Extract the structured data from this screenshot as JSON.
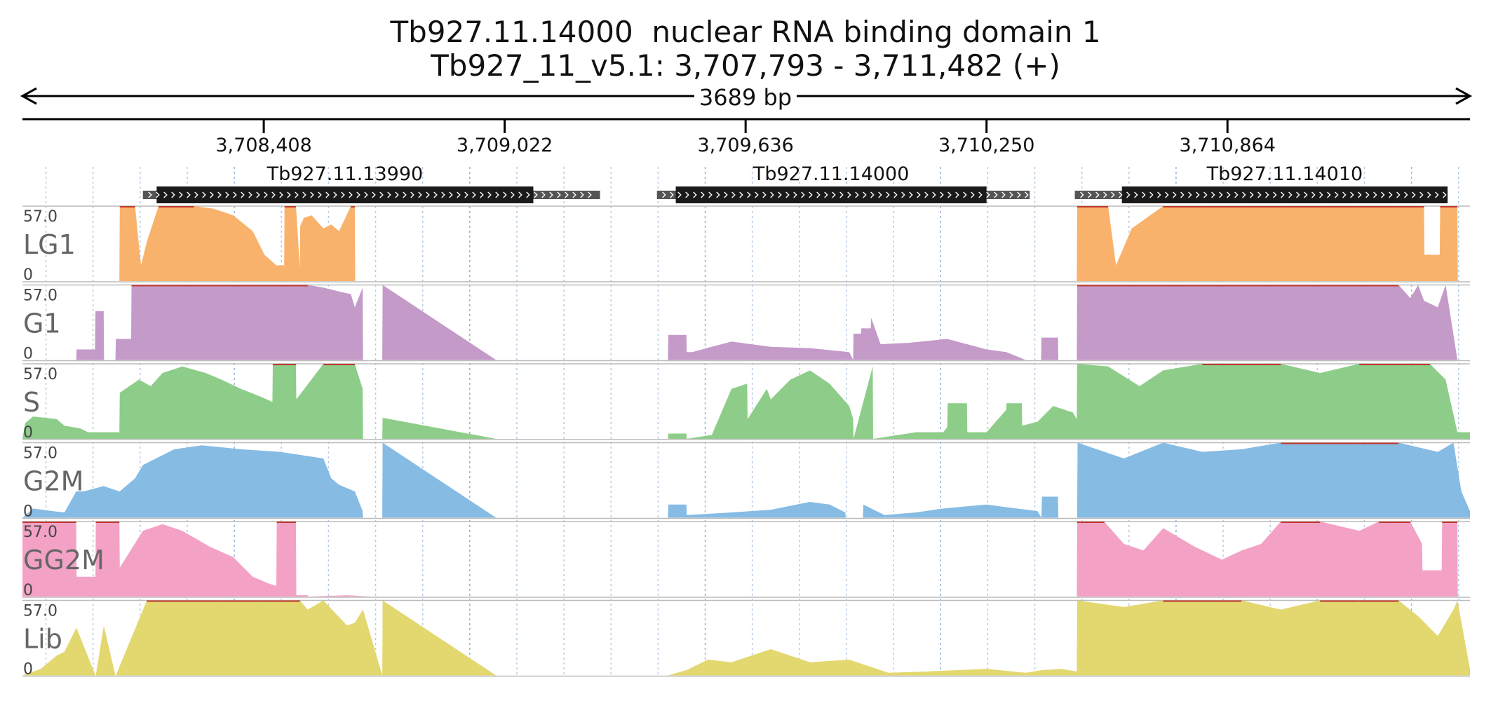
{
  "title": "Tb927.11.14000  nuclear RNA binding domain 1",
  "subtitle": "Tb927_11_v5.1: 3,707,793 - 3,711,482 (+)",
  "span_label": "3689 bp",
  "colors": {
    "LG1": "#f9b26b",
    "G1": "#c49ac9",
    "S": "#8dcd89",
    "G2M": "#86bbe4",
    "GG2M": "#f3a2c6",
    "Lib": "#e3d770",
    "gene_body": "#1a1a1a",
    "utr": "#555555",
    "clip": "#c0392b"
  },
  "chart_data": {
    "type": "area",
    "title": "Tb927.11.14000  nuclear RNA binding domain 1",
    "subtitle": "Tb927_11_v5.1: 3,707,793 - 3,711,482 (+)",
    "xlim": [
      3707793,
      3711482
    ],
    "ylim": [
      0,
      57.0
    ],
    "grid": true,
    "x_ticks": [
      3708408,
      3709022,
      3709636,
      3710250,
      3710864
    ],
    "x_tick_labels": [
      "3,708,408",
      "3,709,022",
      "3,709,636",
      "3,710,250",
      "3,710,864"
    ],
    "genes": [
      {
        "name": "Tb927.11.13990",
        "utr_start": 3708100,
        "cds_start": 3708135,
        "cds_end": 3709095,
        "utr_end": 3709265,
        "strand": "+"
      },
      {
        "name": "Tb927.11.14000",
        "utr_start": 3709410,
        "cds_start": 3709458,
        "cds_end": 3710250,
        "utr_end": 3710360,
        "strand": "+"
      },
      {
        "name": "Tb927.11.14010",
        "utr_start": 3710475,
        "cds_start": 3710595,
        "cds_end": 3711425,
        "utr_end": 3711425,
        "strand": "+"
      }
    ],
    "series": [
      {
        "name": "LG1",
        "ymax_label": "57.0",
        "ymin_label": "0",
        "x": [
          3707793,
          3708040,
          3708041,
          3708080,
          3708095,
          3708110,
          3708140,
          3708180,
          3708230,
          3708280,
          3708330,
          3708380,
          3708410,
          3708440,
          3708460,
          3708461,
          3708490,
          3708500,
          3708501,
          3708510,
          3708530,
          3708560,
          3708580,
          3708600,
          3708630,
          3708640,
          3708641,
          3709000,
          3710480,
          3710481,
          3710560,
          3710580,
          3710620,
          3710700,
          3710800,
          3710900,
          3711000,
          3711100,
          3711200,
          3711300,
          3711365,
          3711366,
          3711405,
          3711406,
          3711450,
          3711451,
          3711482
        ],
        "y": [
          0,
          0,
          57,
          57,
          12,
          30,
          57,
          57,
          57,
          55,
          50,
          38,
          20,
          12,
          12,
          57,
          57,
          10,
          42,
          48,
          50,
          40,
          43,
          38,
          57,
          57,
          0,
          0,
          0,
          57,
          57,
          12,
          40,
          57,
          57,
          57,
          57,
          57,
          57,
          57,
          57,
          20,
          20,
          57,
          57,
          0,
          0
        ]
      },
      {
        "name": "G1",
        "ymax_label": "57.0",
        "ymin_label": "0",
        "x": [
          3707793,
          3707930,
          3707931,
          3707978,
          3707979,
          3708000,
          3708001,
          3708030,
          3708031,
          3708070,
          3708071,
          3708150,
          3708300,
          3708400,
          3708500,
          3708520,
          3708560,
          3708600,
          3708630,
          3708640,
          3708660,
          3708661,
          3708710,
          3708711,
          3709000,
          3709438,
          3709439,
          3709485,
          3709486,
          3709500,
          3709600,
          3709700,
          3709800,
          3709900,
          3709910,
          3709911,
          3709930,
          3709931,
          3709955,
          3709956,
          3709980,
          3710050,
          3710150,
          3710250,
          3710300,
          3710350,
          3710389,
          3710390,
          3710432,
          3710433,
          3710480,
          3710481,
          3710600,
          3710800,
          3711000,
          3711200,
          3711300,
          3711330,
          3711350,
          3711365,
          3711400,
          3711420,
          3711450,
          3711482
        ],
        "y": [
          0,
          0,
          8,
          8,
          37,
          37,
          0,
          0,
          16,
          16,
          57,
          57,
          57,
          57,
          57,
          57,
          55,
          52,
          50,
          40,
          55,
          0,
          0,
          57,
          0,
          0,
          19,
          19,
          6,
          6,
          14,
          10,
          9,
          6,
          0,
          20,
          20,
          24,
          24,
          32,
          12,
          13,
          16,
          8,
          6,
          0,
          0,
          17,
          17,
          0,
          0,
          57,
          57,
          57,
          57,
          57,
          57,
          47,
          57,
          45,
          40,
          57,
          0,
          0
        ]
      },
      {
        "name": "S",
        "ymax_label": "57.0",
        "ymin_label": "0",
        "x": [
          3707793,
          3707800,
          3707820,
          3707880,
          3707900,
          3707940,
          3707960,
          3708010,
          3708040,
          3708041,
          3708090,
          3708120,
          3708150,
          3708200,
          3708260,
          3708300,
          3708350,
          3708400,
          3708430,
          3708431,
          3708490,
          3708491,
          3708560,
          3708561,
          3708630,
          3708640,
          3708660,
          3708661,
          3708710,
          3708711,
          3709000,
          3709438,
          3709439,
          3709485,
          3709486,
          3709550,
          3709600,
          3709640,
          3709641,
          3709690,
          3709700,
          3709750,
          3709800,
          3709850,
          3709900,
          3709910,
          3709911,
          3709960,
          3709961,
          3710070,
          3710140,
          3710150,
          3710151,
          3710200,
          3710201,
          3710250,
          3710300,
          3710301,
          3710340,
          3710341,
          3710380,
          3710420,
          3710470,
          3710480,
          3710481,
          3710560,
          3710640,
          3710700,
          3710800,
          3710900,
          3711000,
          3711100,
          3711200,
          3711300,
          3711380,
          3711420,
          3711450,
          3711482
        ],
        "y": [
          0,
          12,
          17,
          15,
          10,
          8,
          5,
          5,
          5,
          35,
          45,
          40,
          50,
          55,
          50,
          45,
          38,
          32,
          28,
          57,
          57,
          30,
          57,
          57,
          57,
          57,
          38,
          0,
          0,
          16,
          0,
          0,
          4,
          4,
          0,
          3,
          38,
          42,
          15,
          38,
          30,
          45,
          52,
          42,
          25,
          15,
          0,
          55,
          0,
          5,
          5,
          9,
          27,
          27,
          5,
          5,
          22,
          27,
          27,
          10,
          13,
          25,
          20,
          15,
          57,
          55,
          40,
          52,
          57,
          57,
          57,
          50,
          57,
          57,
          57,
          45,
          5,
          5
        ]
      },
      {
        "name": "G2M",
        "ymax_label": "57.0",
        "ymin_label": "0",
        "x": [
          3707793,
          3707820,
          3707870,
          3707900,
          3707930,
          3707950,
          3708000,
          3708040,
          3708041,
          3708080,
          3708100,
          3708180,
          3708250,
          3708350,
          3708450,
          3708560,
          3708580,
          3708600,
          3708640,
          3708660,
          3708661,
          3708710,
          3708711,
          3709000,
          3709438,
          3709439,
          3709485,
          3709486,
          3709600,
          3709700,
          3709800,
          3709850,
          3709890,
          3709891,
          3709935,
          3709936,
          3709990,
          3710070,
          3710140,
          3710250,
          3710300,
          3710380,
          3710390,
          3710391,
          3710432,
          3710433,
          3710481,
          3710482,
          3710600,
          3710700,
          3710800,
          3710900,
          3711000,
          3711100,
          3711200,
          3711300,
          3711400,
          3711440,
          3711460,
          3711482
        ],
        "y": [
          0,
          7,
          5,
          4,
          20,
          20,
          24,
          20,
          20,
          30,
          40,
          52,
          55,
          52,
          50,
          45,
          30,
          25,
          20,
          5,
          0,
          0,
          57,
          0,
          0,
          10,
          10,
          2,
          4,
          6,
          12,
          10,
          4,
          0,
          0,
          10,
          2,
          4,
          7,
          10,
          8,
          5,
          0,
          16,
          16,
          0,
          0,
          57,
          45,
          57,
          50,
          52,
          57,
          57,
          57,
          57,
          50,
          57,
          20,
          5
        ]
      },
      {
        "name": "GG2M",
        "ymax_label": "57.0",
        "ymin_label": "0",
        "x": [
          3707793,
          3707870,
          3707930,
          3707931,
          3707979,
          3707980,
          3708040,
          3708041,
          3708100,
          3708150,
          3708200,
          3708270,
          3708330,
          3708380,
          3708420,
          3708440,
          3708441,
          3708490,
          3708491,
          3708520,
          3708521,
          3708620,
          3708680,
          3709000,
          3710480,
          3710481,
          3710550,
          3710600,
          3710650,
          3710700,
          3710780,
          3710850,
          3710900,
          3710950,
          3711000,
          3711100,
          3711200,
          3711250,
          3711330,
          3711360,
          3711361,
          3711410,
          3711411,
          3711450,
          3711451,
          3711482
        ],
        "y": [
          57,
          57,
          57,
          15,
          15,
          57,
          57,
          22,
          50,
          55,
          50,
          38,
          30,
          15,
          10,
          8,
          57,
          57,
          1,
          1,
          0,
          1,
          0,
          0,
          0,
          57,
          57,
          40,
          35,
          52,
          38,
          28,
          35,
          40,
          57,
          57,
          50,
          57,
          57,
          40,
          20,
          20,
          57,
          57,
          0,
          0
        ]
      },
      {
        "name": "Lib",
        "ymax_label": "57.0",
        "ymin_label": "0",
        "x": [
          3707793,
          3707840,
          3707880,
          3707900,
          3707930,
          3707931,
          3707979,
          3707980,
          3708000,
          3708001,
          3708030,
          3708031,
          3708110,
          3708200,
          3708300,
          3708400,
          3708500,
          3708520,
          3708560,
          3708620,
          3708640,
          3708661,
          3708710,
          3708711,
          3709000,
          3709438,
          3709485,
          3709540,
          3709600,
          3709700,
          3709800,
          3709900,
          3709960,
          3710000,
          3710100,
          3710250,
          3710350,
          3710390,
          3710440,
          3710480,
          3710481,
          3710600,
          3710700,
          3710800,
          3710900,
          3711000,
          3711100,
          3711200,
          3711300,
          3711350,
          3711400,
          3711440,
          3711450,
          3711482
        ],
        "y": [
          0,
          5,
          15,
          18,
          36,
          36,
          0,
          0,
          37,
          37,
          0,
          0,
          57,
          57,
          57,
          57,
          57,
          50,
          57,
          38,
          40,
          50,
          0,
          57,
          0,
          0,
          4,
          12,
          10,
          20,
          10,
          12,
          6,
          2,
          3,
          5,
          2,
          4,
          5,
          3,
          57,
          52,
          57,
          57,
          57,
          50,
          57,
          57,
          57,
          45,
          30,
          50,
          57,
          5
        ]
      }
    ]
  }
}
